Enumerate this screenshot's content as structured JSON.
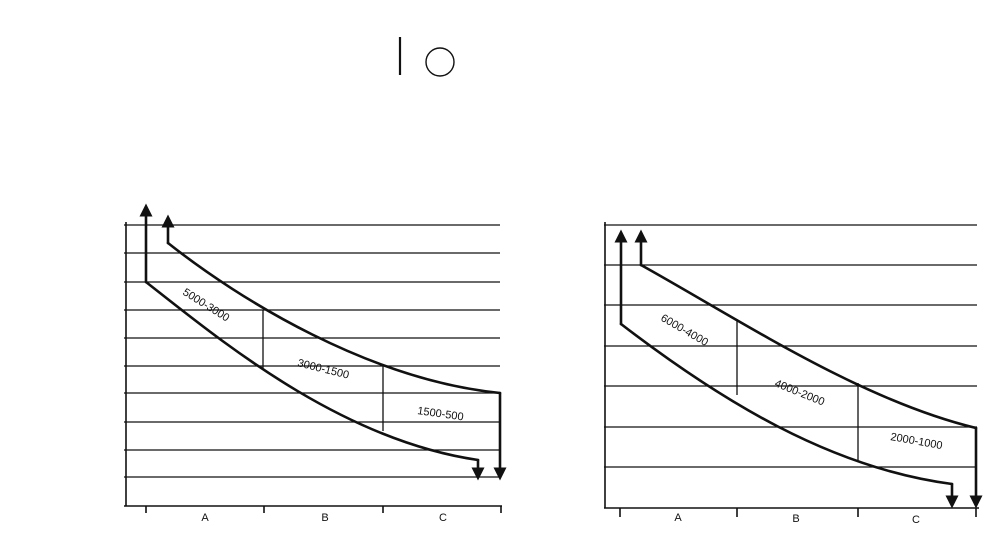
{
  "header_mark": {
    "icon": "circle-icon"
  },
  "left_chart": {
    "bands": [
      "5000-3000",
      "3000-1500",
      "1500-500"
    ],
    "sections": [
      "A",
      "B",
      "C"
    ]
  },
  "right_chart": {
    "bands": [
      "6000-4000",
      "4000-2000",
      "2000-1000"
    ],
    "sections": [
      "A",
      "B",
      "C"
    ]
  }
}
